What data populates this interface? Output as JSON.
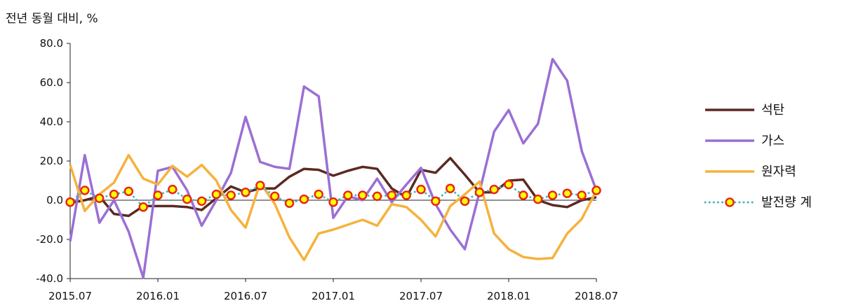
{
  "chart_data": {
    "type": "line",
    "ylabel": "전년 동월 대비, %",
    "ylim": [
      -40,
      80
    ],
    "y_ticks": [
      "80.0",
      "60.0",
      "40.0",
      "20.0",
      "0.0",
      "-20.0",
      "-40.0"
    ],
    "y_tick_values": [
      80,
      60,
      40,
      20,
      0,
      -20,
      -40
    ],
    "x_tick_labels": [
      {
        "index": 0,
        "label": "2015.07"
      },
      {
        "index": 6,
        "label": "2016.01"
      },
      {
        "index": 12,
        "label": "2016.07"
      },
      {
        "index": 18,
        "label": "2017.01"
      },
      {
        "index": 24,
        "label": "2017.07"
      },
      {
        "index": 30,
        "label": "2018.01"
      },
      {
        "index": 36,
        "label": "2018.07"
      }
    ],
    "legend_position": "right",
    "series": [
      {
        "name": "석탄",
        "color": "#5a2a22",
        "style": "solid",
        "values": [
          -1.5,
          0,
          2,
          -7,
          -8,
          -3,
          -3,
          -3,
          -3.5,
          -5,
          1,
          7,
          4,
          6,
          6,
          12,
          16,
          15.5,
          12.5,
          15,
          17,
          16,
          6,
          1.5,
          15.5,
          14,
          21.5,
          13,
          4,
          4,
          10,
          10.5,
          0,
          -2.5,
          -3.5,
          0,
          1.5
        ]
      },
      {
        "name": "가스",
        "color": "#9b6fd4",
        "style": "solid",
        "values": [
          -21,
          23,
          -11.5,
          0,
          -16,
          -39.5,
          15,
          17,
          5,
          -13,
          0,
          14,
          42.5,
          19.5,
          17,
          16,
          58,
          53,
          -9,
          2,
          0,
          11,
          -1,
          8,
          16.5,
          -2,
          -15,
          -25,
          4,
          35,
          46,
          29,
          39,
          72,
          61,
          25,
          5
        ]
      },
      {
        "name": "원자력",
        "color": "#f5b23d",
        "style": "solid",
        "values": [
          18,
          -5.5,
          3,
          9,
          23,
          11,
          8,
          17.5,
          12,
          18,
          10,
          -5,
          -14,
          9,
          -2,
          -19,
          -30.5,
          -17,
          -15,
          -12.5,
          -10,
          -13,
          -2,
          -3.5,
          -10,
          -18.5,
          -3,
          3,
          9.5,
          -17,
          -25,
          -29,
          -30,
          -29.5,
          -17,
          -9.5,
          5
        ]
      },
      {
        "name": "발전량 계",
        "color": "#4ab7b7",
        "marker_fill": "#ffff00",
        "marker_stroke": "#e8261a",
        "style": "dotted-marker",
        "values": [
          -1,
          5,
          1,
          3,
          4.5,
          -3.5,
          2.5,
          5.5,
          0.5,
          -0.5,
          3,
          2.5,
          4,
          7.5,
          2,
          -1.5,
          0.5,
          3,
          -1,
          2.5,
          2.5,
          2,
          2.5,
          2.5,
          5.5,
          -0.5,
          6,
          -0.5,
          4,
          5.5,
          8,
          2.5,
          0.5,
          2.5,
          3.5,
          2.5,
          5
        ]
      }
    ]
  }
}
